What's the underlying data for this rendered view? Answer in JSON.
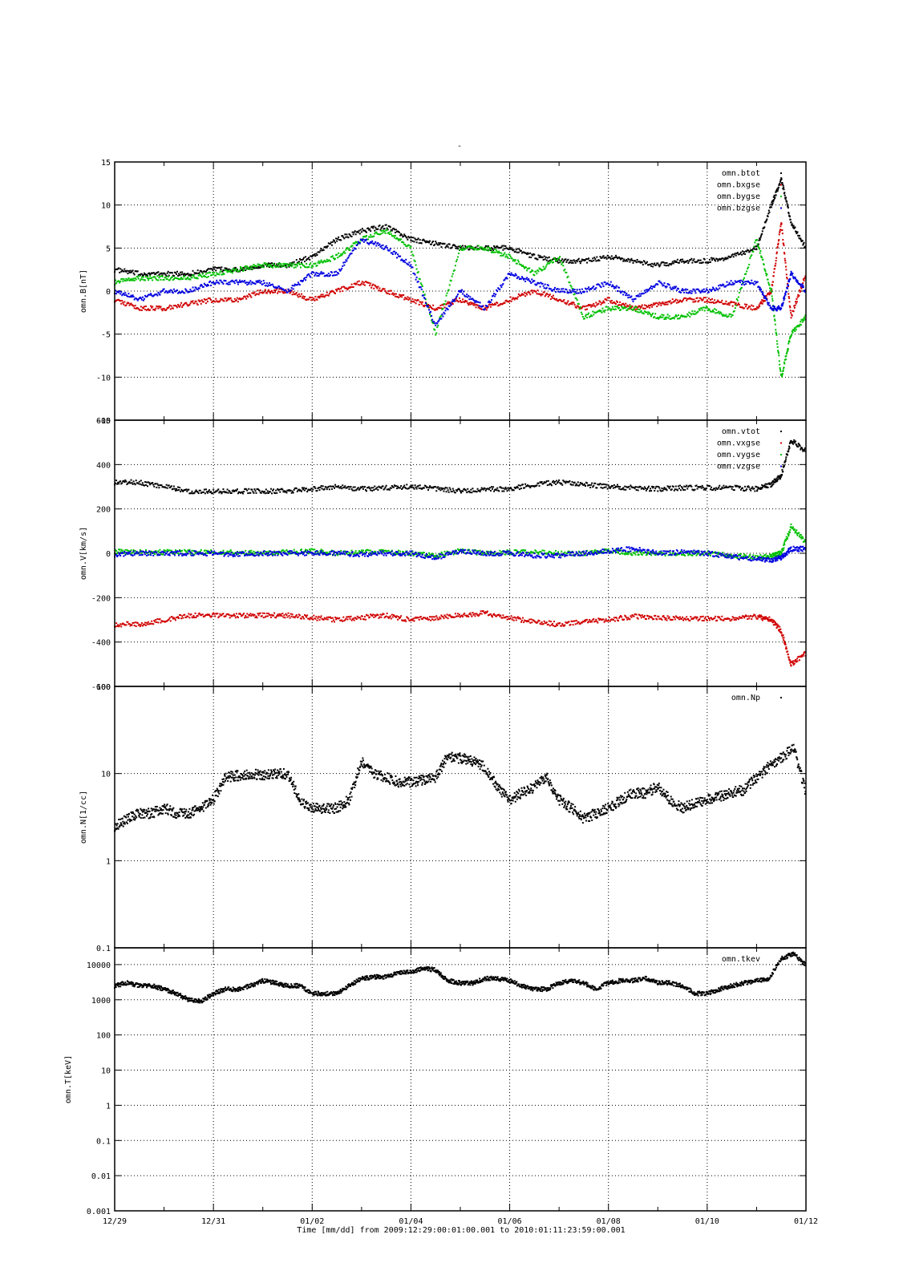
{
  "figure": {
    "title": "-",
    "footer": "Time [mm/dd]  from 2009:12:29:00:01:00.001  to  2010:01:11:23:59:00.001"
  },
  "colors": {
    "black": "#000000",
    "red": "#d00000",
    "green": "#00c000",
    "blue": "#0000e0"
  },
  "chart_data": [
    {
      "type": "scatter",
      "ylabel": "omn.B[nT]",
      "ylim": [
        -15,
        15
      ],
      "yscale": "linear",
      "yticks": [
        15,
        10,
        5,
        0,
        -5,
        -10,
        -15
      ],
      "xlim": [
        0,
        14
      ],
      "xticks": [
        "12/29",
        "12/31",
        "01/02",
        "01/04",
        "01/06",
        "01/08",
        "01/10",
        "01/12"
      ],
      "grid": true,
      "legend_placement": "top-right",
      "series": [
        {
          "name": "omn.btot",
          "color": "#000000",
          "x": [
            0,
            0.5,
            1,
            1.5,
            2,
            2.5,
            3,
            3.5,
            4,
            4.5,
            5,
            5.5,
            6,
            6.5,
            7,
            7.5,
            8,
            8.5,
            9,
            9.5,
            10,
            10.5,
            11,
            11.5,
            12,
            12.5,
            13,
            13.3,
            13.5,
            13.7,
            14
          ],
          "y": [
            2.5,
            2,
            2,
            2,
            2.5,
            2.5,
            3,
            3,
            4,
            6,
            7,
            7.5,
            6,
            5.5,
            5,
            5,
            5,
            4,
            3.5,
            3.5,
            4,
            3.5,
            3,
            3.5,
            3.5,
            4,
            5,
            10,
            13,
            8,
            5
          ]
        },
        {
          "name": "omn.bxgse",
          "color": "#d00000",
          "x": [
            0,
            0.5,
            1,
            1.5,
            2,
            2.5,
            3,
            3.5,
            4,
            4.5,
            5,
            5.5,
            6,
            6.5,
            7,
            7.5,
            8,
            8.5,
            9,
            9.5,
            10,
            10.5,
            11,
            11.5,
            12,
            12.5,
            13,
            13.3,
            13.5,
            13.7,
            14
          ],
          "y": [
            -1,
            -2,
            -2,
            -1.5,
            -1,
            -1,
            0,
            0,
            -1,
            0,
            1,
            0,
            -1,
            -2,
            -1,
            -2,
            -1,
            0,
            -1,
            -2,
            -1,
            -2,
            -1.5,
            -1,
            -1,
            -1.5,
            -2,
            0,
            8,
            -3,
            2
          ]
        },
        {
          "name": "omn.bygse",
          "color": "#00c000",
          "x": [
            0,
            0.5,
            1,
            1.5,
            2,
            2.5,
            3,
            3.5,
            4,
            4.5,
            5,
            5.5,
            6,
            6.5,
            7,
            7.5,
            8,
            8.5,
            9,
            9.5,
            10,
            10.5,
            11,
            11.5,
            12,
            12.5,
            13,
            13.3,
            13.5,
            13.7,
            14
          ],
          "y": [
            1,
            1.5,
            1.5,
            1.5,
            2,
            2.5,
            3,
            3,
            3,
            4,
            6,
            7,
            5,
            -5,
            5,
            5,
            4,
            2,
            4,
            -3,
            -2,
            -2,
            -3,
            -3,
            -2,
            -3,
            6,
            0,
            -10,
            -5,
            -3
          ]
        },
        {
          "name": "omn.bzgse",
          "color": "#0000e0",
          "x": [
            0,
            0.5,
            1,
            1.5,
            2,
            2.5,
            3,
            3.5,
            4,
            4.5,
            5,
            5.5,
            6,
            6.5,
            7,
            7.5,
            8,
            8.5,
            9,
            9.5,
            10,
            10.5,
            11,
            11.5,
            12,
            12.5,
            13,
            13.3,
            13.5,
            13.7,
            14
          ],
          "y": [
            0,
            -1,
            0,
            0,
            1,
            1,
            1,
            0,
            2,
            2,
            6,
            5,
            3,
            -4,
            0,
            -2,
            2,
            1,
            0,
            0,
            1,
            -1,
            1,
            0,
            0,
            1,
            1,
            -2,
            -2,
            2,
            0
          ]
        }
      ]
    },
    {
      "type": "scatter",
      "ylabel": "omn.V[km/s]",
      "ylim": [
        -600,
        600
      ],
      "yscale": "linear",
      "yticks": [
        600,
        400,
        200,
        0,
        -200,
        -400,
        -600
      ],
      "xlim": [
        0,
        14
      ],
      "grid": true,
      "legend_placement": "top-right",
      "series": [
        {
          "name": "omn.vtot",
          "color": "#000000",
          "x": [
            0,
            0.5,
            1,
            1.5,
            2,
            2.5,
            3,
            3.5,
            4,
            4.5,
            5,
            5.5,
            6,
            6.5,
            7,
            7.5,
            8,
            8.5,
            9,
            9.5,
            10,
            10.5,
            11,
            11.5,
            12,
            12.5,
            13,
            13.3,
            13.5,
            13.7,
            14
          ],
          "y": [
            320,
            320,
            300,
            280,
            280,
            280,
            280,
            280,
            290,
            300,
            290,
            295,
            300,
            290,
            280,
            290,
            290,
            310,
            320,
            310,
            300,
            295,
            290,
            295,
            295,
            295,
            290,
            310,
            350,
            510,
            460
          ]
        },
        {
          "name": "omn.vxgse",
          "color": "#d00000",
          "x": [
            0,
            0.5,
            1,
            1.5,
            2,
            2.5,
            3,
            3.5,
            4,
            4.5,
            5,
            5.5,
            6,
            6.5,
            7,
            7.5,
            8,
            8.5,
            9,
            9.5,
            10,
            10.5,
            11,
            11.5,
            12,
            12.5,
            13,
            13.3,
            13.5,
            13.7,
            14
          ],
          "y": [
            -320,
            -320,
            -300,
            -280,
            -280,
            -280,
            -280,
            -280,
            -290,
            -300,
            -290,
            -280,
            -300,
            -290,
            -280,
            -270,
            -290,
            -310,
            -320,
            -310,
            -300,
            -285,
            -290,
            -295,
            -295,
            -295,
            -285,
            -300,
            -350,
            -500,
            -450
          ]
        },
        {
          "name": "omn.vygse",
          "color": "#00c000",
          "x": [
            0,
            0.5,
            1,
            1.5,
            2,
            2.5,
            3,
            3.5,
            4,
            4.5,
            5,
            5.5,
            6,
            6.5,
            7,
            7.5,
            8,
            8.5,
            9,
            9.5,
            10,
            10.5,
            11,
            11.5,
            12,
            12.5,
            13,
            13.3,
            13.5,
            13.7,
            14
          ],
          "y": [
            10,
            5,
            5,
            5,
            5,
            5,
            0,
            5,
            10,
            0,
            5,
            5,
            0,
            -10,
            10,
            0,
            5,
            5,
            0,
            0,
            10,
            0,
            0,
            0,
            0,
            -10,
            -20,
            -10,
            0,
            120,
            50
          ]
        },
        {
          "name": "omn.vzgse",
          "color": "#0000e0",
          "x": [
            0,
            0.5,
            1,
            1.5,
            2,
            2.5,
            3,
            3.5,
            4,
            4.5,
            5,
            5.5,
            6,
            6.5,
            7,
            7.5,
            8,
            8.5,
            9,
            9.5,
            10,
            10.5,
            11,
            11.5,
            12,
            12.5,
            13,
            13.3,
            13.5,
            13.7,
            14
          ],
          "y": [
            -5,
            0,
            0,
            0,
            0,
            -5,
            0,
            0,
            0,
            0,
            -5,
            0,
            0,
            -20,
            10,
            0,
            0,
            -10,
            -10,
            0,
            10,
            20,
            0,
            5,
            0,
            -15,
            -25,
            -30,
            -20,
            20,
            20
          ]
        }
      ]
    },
    {
      "type": "scatter",
      "ylabel": "omn.N[1/cc]",
      "ylim": [
        0.1,
        100
      ],
      "yscale": "log",
      "yticks": [
        100,
        10,
        1,
        0.1
      ],
      "xlim": [
        0,
        14
      ],
      "grid": true,
      "legend_placement": "top-right",
      "series": [
        {
          "name": "omn.Np",
          "color": "#000000",
          "x": [
            0,
            0.25,
            0.5,
            0.75,
            1,
            1.25,
            1.5,
            1.75,
            2,
            2.25,
            2.5,
            2.75,
            3,
            3.25,
            3.5,
            3.75,
            4,
            4.25,
            4.5,
            4.75,
            5,
            5.25,
            5.5,
            5.75,
            6,
            6.25,
            6.5,
            6.75,
            7,
            7.25,
            7.5,
            7.75,
            8,
            8.25,
            8.5,
            8.75,
            9,
            9.25,
            9.5,
            9.75,
            10,
            10.25,
            10.5,
            10.75,
            11,
            11.25,
            11.5,
            11.75,
            12,
            12.25,
            12.5,
            12.75,
            13,
            13.25,
            13.5,
            13.75,
            14
          ],
          "y": [
            2.5,
            3,
            3.5,
            3.5,
            4,
            3.5,
            3.5,
            4,
            5,
            9,
            9.5,
            10,
            9.5,
            10,
            10,
            5,
            4,
            4,
            4,
            5,
            14,
            10,
            9,
            8,
            8,
            8.5,
            9,
            16,
            15,
            14,
            12,
            7,
            5,
            6,
            7,
            9,
            5,
            4,
            3,
            3.5,
            4,
            5,
            6,
            6,
            7,
            5,
            4,
            4.5,
            5,
            5.5,
            6,
            6.5,
            9,
            12,
            15,
            20,
            6
          ]
        }
      ]
    },
    {
      "type": "scatter",
      "ylabel": "omn.T[keV]",
      "ylim": [
        0.001,
        30000
      ],
      "yscale": "log",
      "yticks": [
        10000,
        1000,
        100,
        10,
        1,
        0.1,
        0.01,
        0.001
      ],
      "xlim": [
        0,
        14
      ],
      "grid": true,
      "legend_placement": "top-right",
      "series": [
        {
          "name": "omn.tkev",
          "color": "#000000",
          "x": [
            0,
            0.25,
            0.5,
            0.75,
            1,
            1.25,
            1.5,
            1.75,
            2,
            2.25,
            2.5,
            2.75,
            3,
            3.25,
            3.5,
            3.75,
            4,
            4.25,
            4.5,
            4.75,
            5,
            5.25,
            5.5,
            5.75,
            6,
            6.25,
            6.5,
            6.75,
            7,
            7.25,
            7.5,
            7.75,
            8,
            8.25,
            8.5,
            8.75,
            9,
            9.25,
            9.5,
            9.75,
            10,
            10.25,
            10.5,
            10.75,
            11,
            11.25,
            11.5,
            11.75,
            12,
            12.25,
            12.5,
            12.75,
            13,
            13.25,
            13.5,
            13.75,
            14
          ],
          "y": [
            2500,
            3000,
            2500,
            2500,
            2000,
            1500,
            1000,
            900,
            1500,
            2000,
            2000,
            2500,
            3500,
            3000,
            2500,
            2500,
            1500,
            1500,
            1500,
            2500,
            4000,
            4500,
            4500,
            6000,
            6000,
            8000,
            7000,
            3500,
            3000,
            3000,
            4000,
            4000,
            3500,
            2500,
            2000,
            2000,
            3000,
            3500,
            3000,
            2000,
            3000,
            3500,
            3500,
            4000,
            3000,
            3000,
            2500,
            1500,
            1500,
            2000,
            2500,
            3000,
            3500,
            4000,
            15000,
            20000,
            10000
          ]
        }
      ]
    }
  ]
}
